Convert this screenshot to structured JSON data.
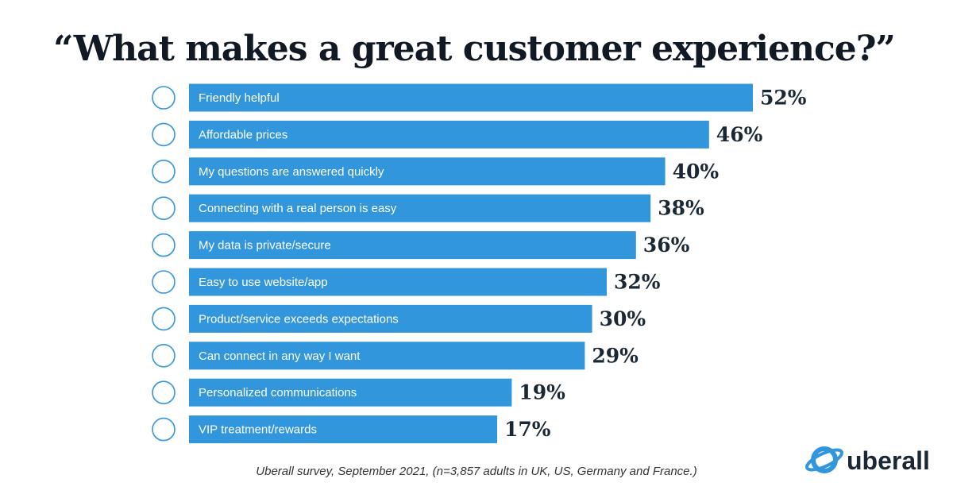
{
  "chart_data": {
    "type": "bar",
    "title": "“What makes a great customer experience?”",
    "categories": [
      "Friendly helpful",
      "Affordable prices",
      "My questions are answered quickly",
      "Connecting with a real person is easy",
      "My data is private/secure",
      "Easy to use website/app",
      "Product/service exceeds expectations",
      "Can connect in any way I want",
      "Personalized communications",
      "VIP treatment/rewards"
    ],
    "values": [
      52,
      46,
      40,
      38,
      36,
      32,
      30,
      29,
      19,
      17
    ],
    "value_labels": [
      "52%",
      "46%",
      "40%",
      "38%",
      "36%",
      "32%",
      "30%",
      "29%",
      "19%",
      "17%"
    ],
    "color": "#3296dc",
    "source": "Uberall survey, September 2021, (n=3,857 adults in UK, US, Germany and France.)",
    "logo": "uberall"
  }
}
